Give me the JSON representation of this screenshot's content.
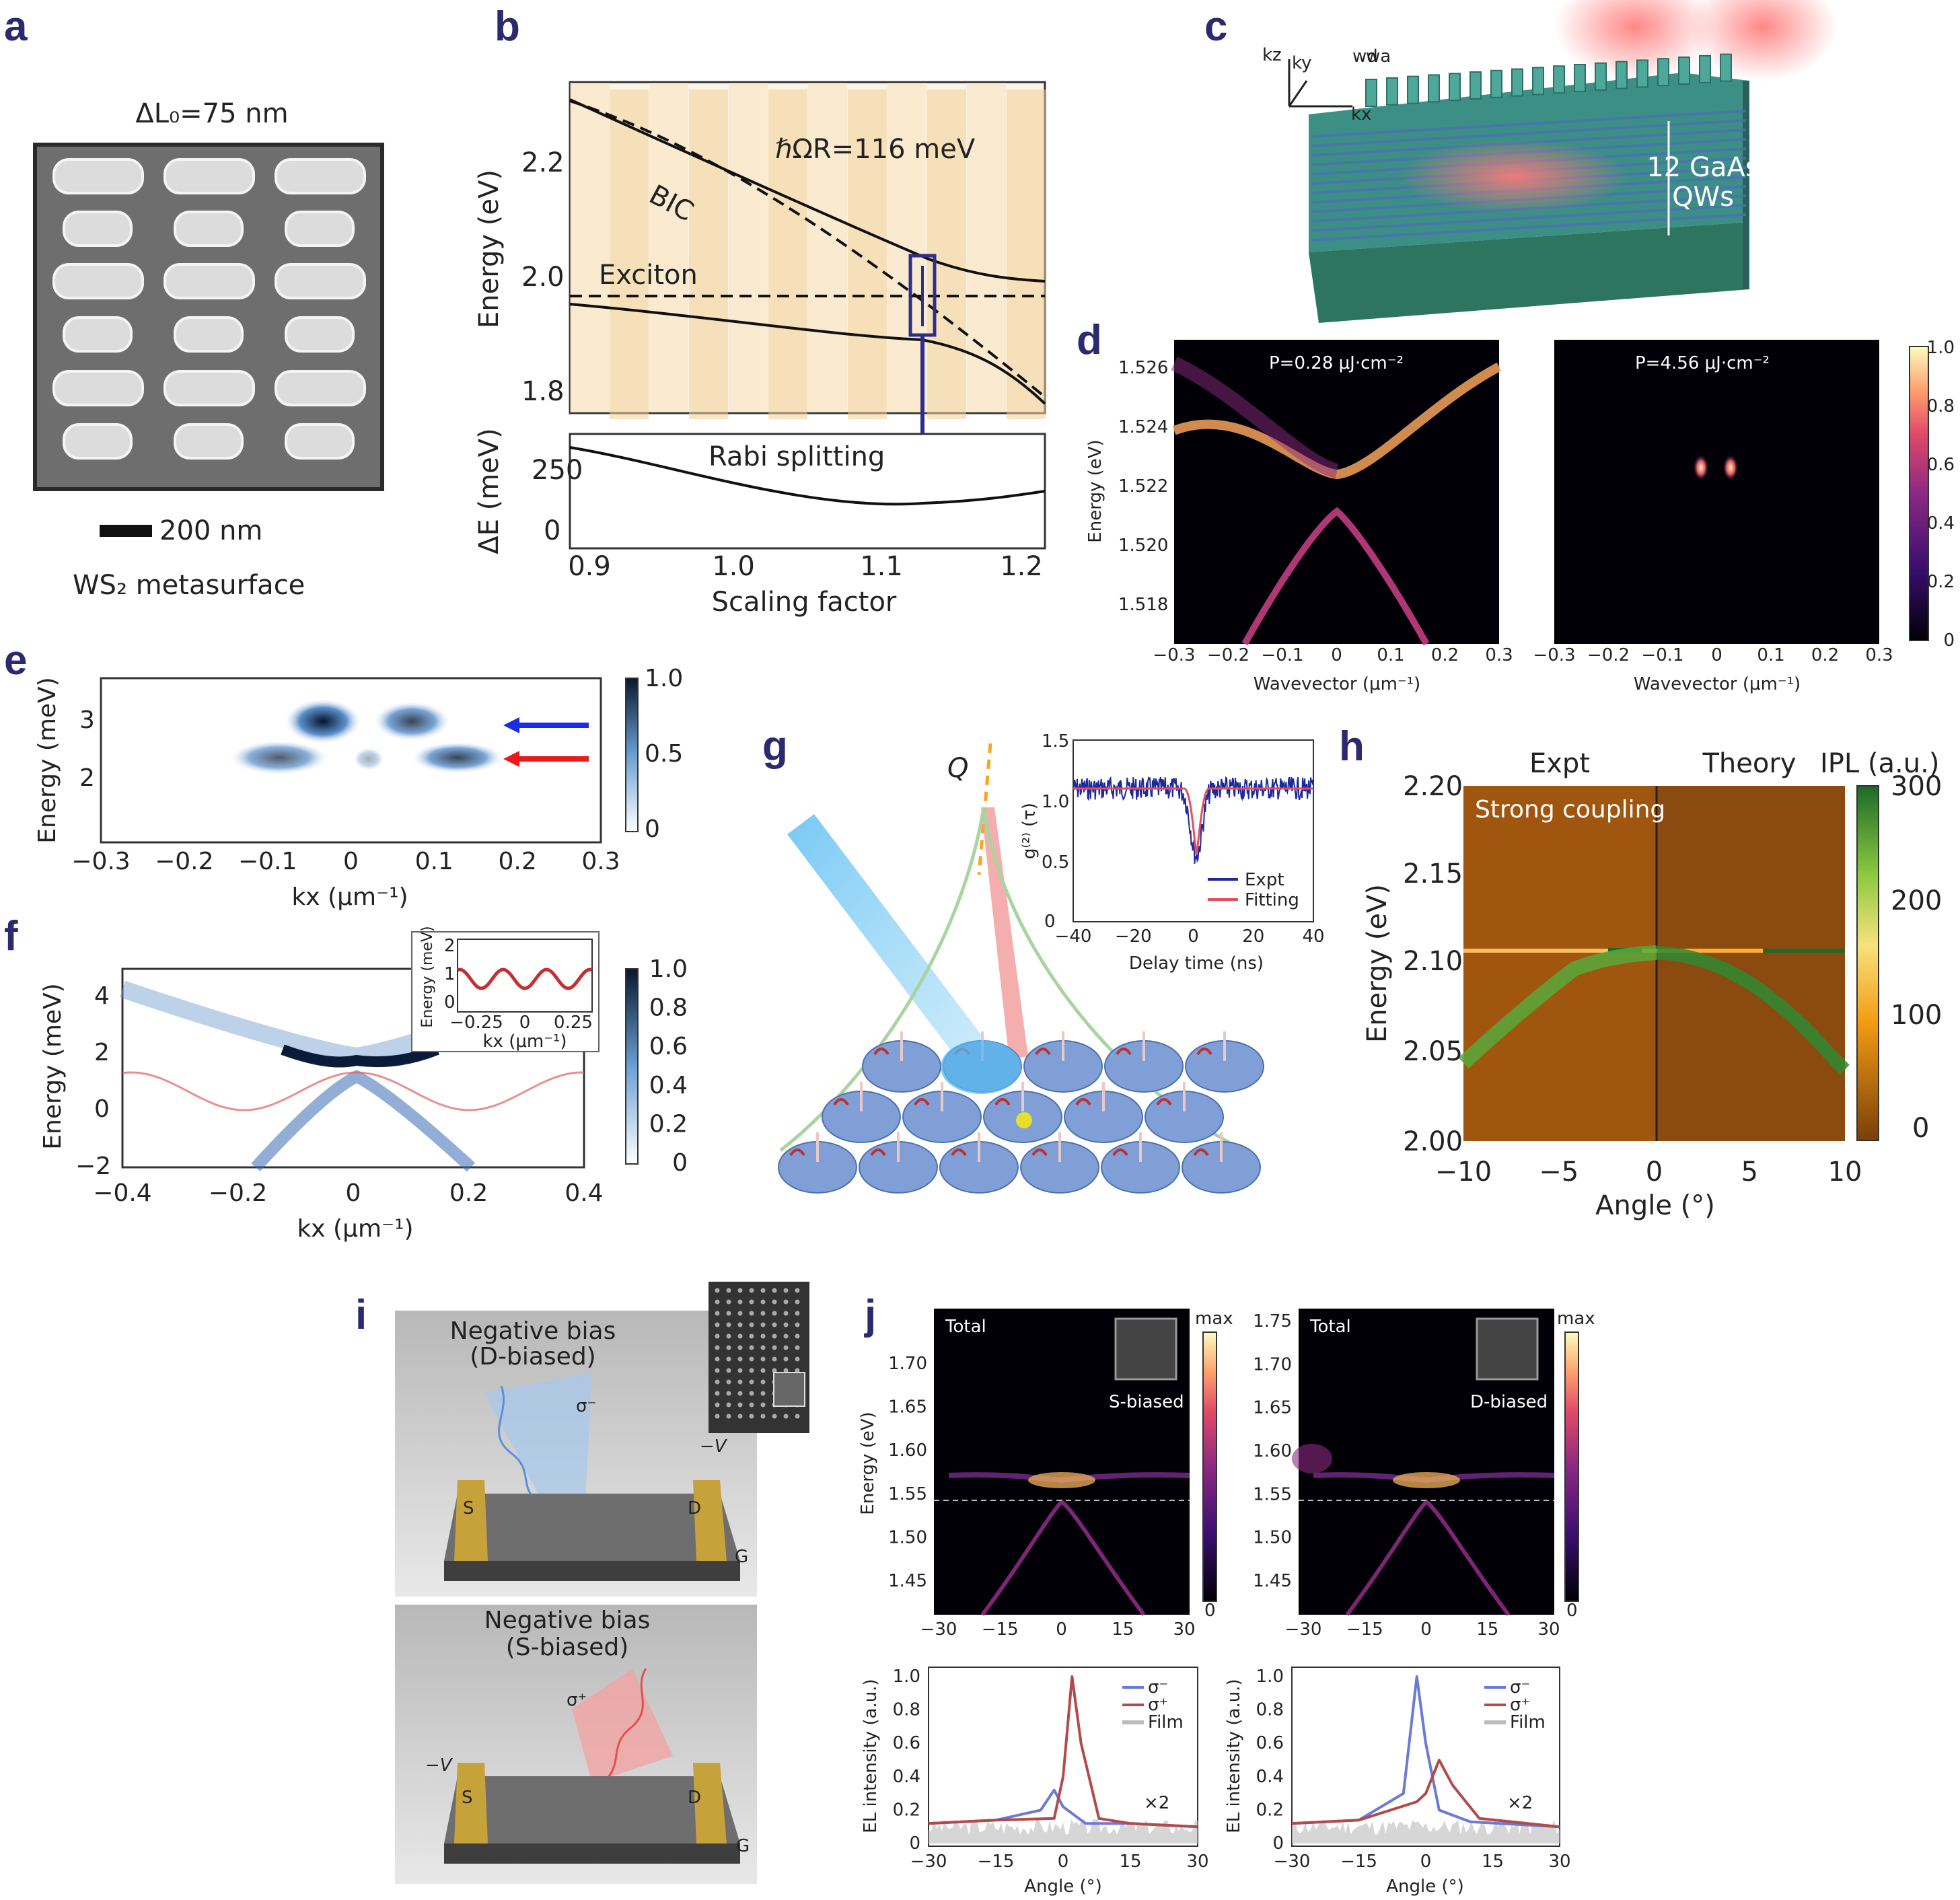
{
  "panels": {
    "a": {
      "letter": "a",
      "title": "ΔL₀=75 nm",
      "scale_bar": "200 nm",
      "caption": "WS₂ metasurface"
    },
    "b": {
      "letter": "b",
      "annotations": {
        "coupling": "ℏΩR=116 meV",
        "bic": "BIC",
        "exciton": "Exciton",
        "rabi": "Rabi splitting"
      },
      "ylabel_top": "Energy (eV)",
      "ylabel_bottom": "ΔE (meV)",
      "xlabel": "Scaling factor",
      "yticks_top": [
        "2.2",
        "2.0",
        "1.8"
      ],
      "yticks_bottom": [
        "250",
        "0"
      ],
      "xticks": [
        "0.9",
        "1.0",
        "1.1",
        "1.2"
      ]
    },
    "c": {
      "letter": "c",
      "axes": [
        "kz",
        "ky",
        "kx"
      ],
      "widths": [
        "wd",
        "wa"
      ],
      "label": [
        "12 GaAs",
        "QWs"
      ]
    },
    "d": {
      "letter": "d",
      "ylabel": "Energy (eV)",
      "yticks": [
        "1.526",
        "1.524",
        "1.522",
        "1.520",
        "1.518"
      ],
      "xticks": [
        "−0.3",
        "−0.2",
        "−0.1",
        "0",
        "0.1",
        "0.2",
        "0.3"
      ],
      "xlabel": "Wavevector (μm⁻¹)",
      "left_title": "P=0.28 μJ·cm⁻²",
      "right_title": "P=4.56 μJ·cm⁻²",
      "colorbar_ticks": [
        "1.0",
        "0.8",
        "0.6",
        "0.4",
        "0.2",
        "0"
      ]
    },
    "e": {
      "letter": "e",
      "ylabel": "Energy (meV)",
      "yticks": [
        "3",
        "2"
      ],
      "xticks": [
        "−0.3",
        "−0.2",
        "−0.1",
        "0",
        "0.1",
        "0.2",
        "0.3"
      ],
      "xlabel": "kx (μm⁻¹)",
      "colorbar_ticks": [
        "1.0",
        "0.5",
        "0"
      ]
    },
    "f": {
      "letter": "f",
      "ylabel": "Energy (meV)",
      "yticks": [
        "4",
        "2",
        "0",
        "−2"
      ],
      "xticks": [
        "−0.4",
        "−0.2",
        "0",
        "0.2",
        "0.4"
      ],
      "xlabel": "kx (μm⁻¹)",
      "colorbar_ticks": [
        "1.0",
        "0.8",
        "0.6",
        "0.4",
        "0.2",
        "0"
      ],
      "inset": {
        "ylabel": "Energy (meV)",
        "yticks": [
          "2",
          "1",
          "0"
        ],
        "xticks": [
          "−0.25",
          "0",
          "0.25"
        ],
        "xlabel": "kx (μm⁻¹)"
      }
    },
    "g": {
      "letter": "g",
      "q_label": "Q",
      "inset": {
        "ylabel": "g⁽²⁾ (τ)",
        "yticks": [
          "1.5",
          "1.0",
          "0.5",
          "0"
        ],
        "xticks": [
          "−40",
          "−20",
          "0",
          "20",
          "40"
        ],
        "xlabel": "Delay time (ns)",
        "legend": [
          "Expt",
          "Fitting"
        ]
      }
    },
    "h": {
      "letter": "h",
      "col_titles": [
        "Expt",
        "Theory"
      ],
      "cbar_title": "IPL (a.u.)",
      "inner_label": "Strong coupling",
      "ylabel": "Energy (eV)",
      "yticks": [
        "2.20",
        "2.15",
        "2.10",
        "2.05",
        "2.00"
      ],
      "xticks": [
        "−10",
        "−5",
        "0",
        "5",
        "10"
      ],
      "xlabel": "Angle (°)",
      "colorbar_ticks": [
        "300",
        "200",
        "100",
        "0"
      ]
    },
    "i": {
      "letter": "i",
      "top": {
        "title": [
          "Negative bias",
          "(D-biased)"
        ],
        "pol": "σ⁻",
        "voltage": "−V",
        "s": "S",
        "d": "D",
        "g": "G"
      },
      "bottom": {
        "title": [
          "Negative bias",
          "(S-biased)"
        ],
        "pol": "σ⁺",
        "voltage": "−V",
        "s": "S",
        "d": "D",
        "g": "G"
      }
    },
    "j": {
      "letter": "j",
      "maps": [
        {
          "title": "Total",
          "inset": "S-biased",
          "yticks": [
            "1.70",
            "1.65",
            "1.60",
            "1.55",
            "1.50",
            "1.45"
          ],
          "cbar": [
            "max",
            "0"
          ]
        },
        {
          "title": "Total",
          "inset": "D-biased",
          "yticks": [
            "1.75",
            "1.70",
            "1.65",
            "1.60",
            "1.55",
            "1.50",
            "1.45"
          ],
          "cbar": [
            "max",
            "0"
          ]
        }
      ],
      "map_ylabel": "Energy (eV)",
      "map_xticks": [
        "−30",
        "−15",
        "0",
        "15",
        "30"
      ],
      "spectra_ylabel": "EL intensity (a.u.)",
      "spectra_yticks": [
        "1.0",
        "0.8",
        "0.6",
        "0.4",
        "0.2",
        "0"
      ],
      "spectra_xticks": [
        "−30",
        "−15",
        "0",
        "15",
        "30"
      ],
      "spectra_xlabel": "Angle (°)",
      "legend": [
        "σ⁻",
        "σ⁺",
        "Film"
      ],
      "multiplier": "×2"
    }
  },
  "chart_data": [
    {
      "type": "line",
      "panel": "b",
      "x": [
        0.9,
        1.0,
        1.1,
        1.2
      ],
      "series": [],
      "ylim_top": [
        1.75,
        2.35
      ],
      "ylim_bottom": [
        0,
        350
      ]
    },
    {
      "type": "line",
      "panel": "g-inset",
      "series": [
        {
          "name": "Expt"
        },
        {
          "name": "Fitting"
        }
      ],
      "xlim": [
        -40,
        40
      ],
      "ylim": [
        0,
        1.5
      ]
    },
    {
      "type": "line",
      "panel": "j-left",
      "series": [
        {
          "name": "σ⁻",
          "x": [
            -30,
            -15,
            -5,
            -2,
            0,
            5,
            15,
            30
          ],
          "y": [
            0.12,
            0.14,
            0.2,
            0.32,
            0.22,
            0.12,
            0.12,
            0.1
          ]
        },
        {
          "name": "σ⁺",
          "x": [
            -30,
            -15,
            -2,
            0,
            2,
            4,
            8,
            15,
            30
          ],
          "y": [
            0.12,
            0.14,
            0.15,
            0.4,
            1.0,
            0.6,
            0.15,
            0.12,
            0.1
          ]
        },
        {
          "name": "Film"
        }
      ],
      "xlim": [
        -30,
        30
      ],
      "ylim": [
        0,
        1.0
      ]
    },
    {
      "type": "line",
      "panel": "j-right",
      "series": [
        {
          "name": "σ⁻",
          "x": [
            -30,
            -15,
            -5,
            -2,
            0,
            3,
            10,
            30
          ],
          "y": [
            0.12,
            0.14,
            0.3,
            1.0,
            0.6,
            0.2,
            0.13,
            0.1
          ]
        },
        {
          "name": "σ⁺",
          "x": [
            -30,
            -15,
            -2,
            0,
            3,
            6,
            12,
            30
          ],
          "y": [
            0.12,
            0.14,
            0.25,
            0.3,
            0.5,
            0.35,
            0.15,
            0.1
          ]
        },
        {
          "name": "Film"
        }
      ],
      "xlim": [
        -30,
        30
      ],
      "ylim": [
        0,
        1.0
      ]
    }
  ]
}
